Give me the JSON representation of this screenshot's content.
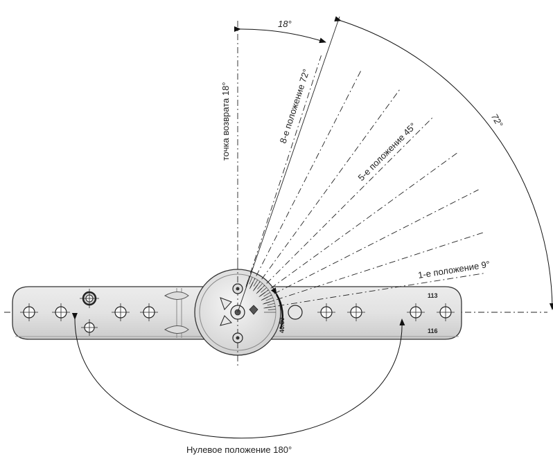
{
  "labels": {
    "return_point": "точка возврата 18°",
    "pos8": "8-е положение 72°",
    "pos5": "5-е положение 45°",
    "pos1": "1-е положение 9°",
    "zero": "Нулевое положение 180°",
    "angle_18": "18°",
    "angle_72": "72°",
    "part_code": "40.30",
    "hole_top": "113",
    "hole_bottom": "116"
  }
}
